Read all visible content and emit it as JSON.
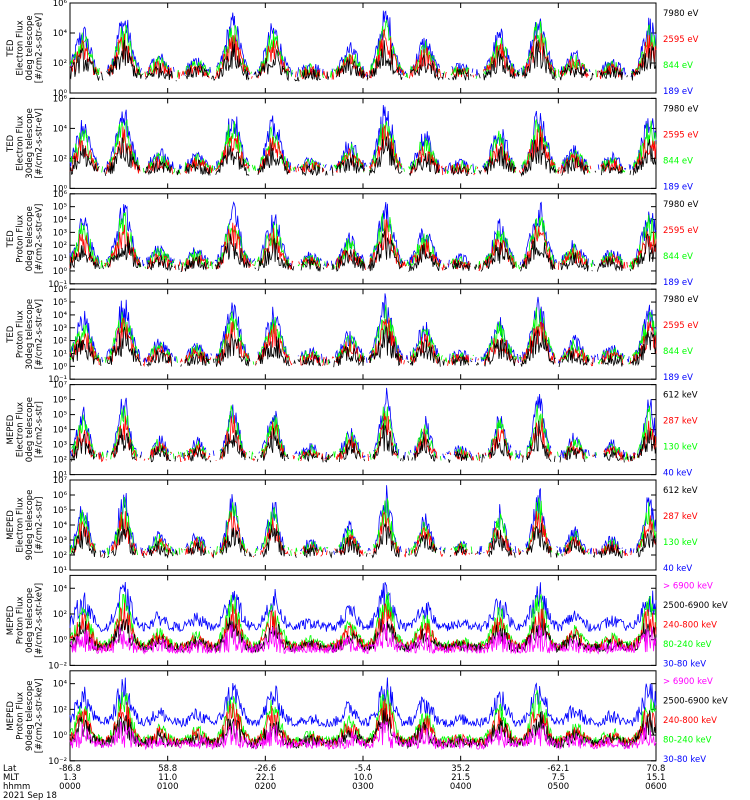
{
  "colors": {
    "blue": "#0000ff",
    "red": "#ff0000",
    "green": "#00ff00",
    "black": "#000000",
    "magenta": "#ff00ff"
  },
  "chart_data": [
    {
      "type": "line",
      "title": "",
      "ylabel": [
        "TED",
        "Electron Flux",
        "0deg telescope",
        "[#/cm2-s-str-eV]"
      ],
      "yscale": "log",
      "ylim": [
        1,
        1000000
      ],
      "yticks": [
        {
          "value": 1,
          "label": "10⁰"
        },
        {
          "value": 100,
          "label": "10²"
        },
        {
          "value": 10000,
          "label": "10⁴"
        },
        {
          "value": 1000000,
          "label": "10⁶"
        }
      ],
      "series": [
        {
          "name": "7980 eV",
          "color": "black"
        },
        {
          "name": "2595 eV",
          "color": "red"
        },
        {
          "name": "844 eV",
          "color": "green"
        },
        {
          "name": "189 eV",
          "color": "blue"
        }
      ]
    },
    {
      "type": "line",
      "title": "",
      "ylabel": [
        "TED",
        "Electron Flux",
        "30deg telescope",
        "[#/cm2-s-str-eV]"
      ],
      "yscale": "log",
      "ylim": [
        1,
        1000000
      ],
      "yticks": [
        {
          "value": 1,
          "label": "10⁰"
        },
        {
          "value": 100,
          "label": "10²"
        },
        {
          "value": 10000,
          "label": "10⁴"
        },
        {
          "value": 1000000,
          "label": "10⁶"
        }
      ],
      "series": [
        {
          "name": "7980 eV",
          "color": "black"
        },
        {
          "name": "2595 eV",
          "color": "red"
        },
        {
          "name": "844 eV",
          "color": "green"
        },
        {
          "name": "189 eV",
          "color": "blue"
        }
      ]
    },
    {
      "type": "line",
      "title": "",
      "ylabel": [
        "TED",
        "Proton Flux",
        "0deg telescope",
        "[#/cm2-s-str-eV]"
      ],
      "yscale": "log",
      "ylim": [
        0.1,
        1000000
      ],
      "yticks": [
        {
          "value": 0.1,
          "label": "10⁻¹"
        },
        {
          "value": 1,
          "label": "10⁰"
        },
        {
          "value": 10,
          "label": "10¹"
        },
        {
          "value": 100,
          "label": "10²"
        },
        {
          "value": 1000,
          "label": "10³"
        },
        {
          "value": 10000,
          "label": "10⁴"
        },
        {
          "value": 100000,
          "label": "10⁵"
        },
        {
          "value": 1000000,
          "label": "10⁶"
        }
      ],
      "series": [
        {
          "name": "7980 eV",
          "color": "black"
        },
        {
          "name": "2595 eV",
          "color": "red"
        },
        {
          "name": "844 eV",
          "color": "green"
        },
        {
          "name": "189 eV",
          "color": "blue"
        }
      ]
    },
    {
      "type": "line",
      "title": "",
      "ylabel": [
        "TED",
        "Proton Flux",
        "30deg telescope",
        "[#/cm2-s-str-eV]"
      ],
      "yscale": "log",
      "ylim": [
        0.1,
        1000000
      ],
      "yticks": [
        {
          "value": 0.1,
          "label": "10⁻¹"
        },
        {
          "value": 1,
          "label": "10⁰"
        },
        {
          "value": 10,
          "label": "10¹"
        },
        {
          "value": 100,
          "label": "10²"
        },
        {
          "value": 1000,
          "label": "10³"
        },
        {
          "value": 10000,
          "label": "10⁴"
        },
        {
          "value": 100000,
          "label": "10⁵"
        },
        {
          "value": 1000000,
          "label": "10⁶"
        }
      ],
      "series": [
        {
          "name": "7980 eV",
          "color": "black"
        },
        {
          "name": "2595 eV",
          "color": "red"
        },
        {
          "name": "844 eV",
          "color": "green"
        },
        {
          "name": "189 eV",
          "color": "blue"
        }
      ]
    },
    {
      "type": "line",
      "title": "",
      "ylabel": [
        "MEPED",
        "Electron Flux",
        "0deg telescope",
        "[#/cm2-s-str]"
      ],
      "yscale": "log",
      "ylim": [
        10,
        10000000
      ],
      "yticks": [
        {
          "value": 10,
          "label": "10¹"
        },
        {
          "value": 100,
          "label": "10²"
        },
        {
          "value": 1000,
          "label": "10³"
        },
        {
          "value": 10000,
          "label": "10⁴"
        },
        {
          "value": 100000,
          "label": "10⁵"
        },
        {
          "value": 1000000,
          "label": "10⁶"
        },
        {
          "value": 10000000,
          "label": "10⁷"
        }
      ],
      "series": [
        {
          "name": "612 keV",
          "color": "black"
        },
        {
          "name": "287 keV",
          "color": "red"
        },
        {
          "name": "130 keV",
          "color": "green"
        },
        {
          "name": "40 keV",
          "color": "blue"
        }
      ]
    },
    {
      "type": "line",
      "title": "",
      "ylabel": [
        "MEPED",
        "Electron Flux",
        "90deg telescope",
        "[#/cm2-s-str]"
      ],
      "yscale": "log",
      "ylim": [
        10,
        10000000
      ],
      "yticks": [
        {
          "value": 10,
          "label": "10¹"
        },
        {
          "value": 100,
          "label": "10²"
        },
        {
          "value": 1000,
          "label": "10³"
        },
        {
          "value": 10000,
          "label": "10⁴"
        },
        {
          "value": 100000,
          "label": "10⁵"
        },
        {
          "value": 1000000,
          "label": "10⁶"
        },
        {
          "value": 10000000,
          "label": "10⁷"
        }
      ],
      "series": [
        {
          "name": "612 keV",
          "color": "black"
        },
        {
          "name": "287 keV",
          "color": "red"
        },
        {
          "name": "130 keV",
          "color": "green"
        },
        {
          "name": "40 keV",
          "color": "blue"
        }
      ]
    },
    {
      "type": "line",
      "title": "",
      "ylabel": [
        "MEPED",
        "Proton Flux",
        "0deg telescope",
        "[#/cm2-s-str-keV]"
      ],
      "yscale": "log",
      "ylim": [
        0.01,
        100000
      ],
      "yticks": [
        {
          "value": 0.01,
          "label": "10⁻²"
        },
        {
          "value": 1,
          "label": "10⁰"
        },
        {
          "value": 100,
          "label": "10²"
        },
        {
          "value": 10000,
          "label": "10⁴"
        }
      ],
      "series": [
        {
          "name": "> 6900 keV",
          "color": "magenta"
        },
        {
          "name": "2500-6900 keV",
          "color": "black"
        },
        {
          "name": "240-800 keV",
          "color": "red"
        },
        {
          "name": "80-240 keV",
          "color": "green"
        },
        {
          "name": "30-80 keV",
          "color": "blue"
        }
      ]
    },
    {
      "type": "line",
      "title": "",
      "ylabel": [
        "MEPED",
        "Proton Flux",
        "90deg telescope",
        "[#/cm2-s-str-keV]"
      ],
      "yscale": "log",
      "ylim": [
        0.01,
        100000
      ],
      "yticks": [
        {
          "value": 0.01,
          "label": "10⁻²"
        },
        {
          "value": 1,
          "label": "10⁰"
        },
        {
          "value": 100,
          "label": "10²"
        },
        {
          "value": 10000,
          "label": "10⁴"
        }
      ],
      "series": [
        {
          "name": "> 6900 keV",
          "color": "magenta"
        },
        {
          "name": "2500-6900 keV",
          "color": "black"
        },
        {
          "name": "240-800 keV",
          "color": "red"
        },
        {
          "name": "80-240 keV",
          "color": "green"
        },
        {
          "name": "30-80 keV",
          "color": "blue"
        }
      ]
    }
  ],
  "x_axis": {
    "row_labels": [
      "Lat",
      "MLT",
      "hhmm",
      "2021 Sep 18"
    ],
    "ticks": [
      {
        "hhmm": "0000",
        "minutes": 0,
        "lat": "-86.8",
        "mlt": "1.3"
      },
      {
        "hhmm": "0100",
        "minutes": 60,
        "lat": "58.8",
        "mlt": "11.0"
      },
      {
        "hhmm": "0200",
        "minutes": 120,
        "lat": "-26.6",
        "mlt": "22.1"
      },
      {
        "hhmm": "0300",
        "minutes": 180,
        "lat": "-5.4",
        "mlt": "10.0"
      },
      {
        "hhmm": "0400",
        "minutes": 240,
        "lat": "35.2",
        "mlt": "21.5"
      },
      {
        "hhmm": "0500",
        "minutes": 300,
        "lat": "-62.1",
        "mlt": "7.5"
      },
      {
        "hhmm": "0600",
        "minutes": 360,
        "lat": "70.8",
        "mlt": "15.1"
      }
    ],
    "xlim_minutes": [
      0,
      360
    ]
  }
}
